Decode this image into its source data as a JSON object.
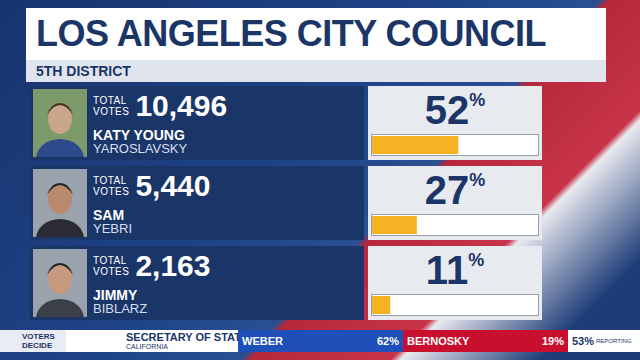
{
  "chart_data": {
    "type": "bar",
    "orientation": "horizontal",
    "title": "LOS ANGELES CITY COUNCIL",
    "subtitle": "5TH DISTRICT",
    "categories": [
      "KATY YOUNG YAROSLAVSKY",
      "SAM YEBRI",
      "JIMMY BIBLARZ"
    ],
    "values": [
      52,
      27,
      11
    ],
    "value_labels": [
      "52%",
      "27%",
      "11%"
    ],
    "data_labels": true,
    "votes_caption": "TOTAL VOTES",
    "votes": [
      10496,
      5440,
      2163
    ],
    "votes_labels": [
      "10,496",
      "5,440",
      "2,163"
    ],
    "color": "#f5b324",
    "xlim": [
      0,
      100
    ],
    "tick_labels": false,
    "grid": false
  },
  "ticker": {
    "logo": "VOTERS DECIDE",
    "race": "SECRETARY OF STATE",
    "state": "CALIFORNIA",
    "candidates": [
      {
        "name": "WEBER",
        "value": 62,
        "label": "62%",
        "color": "#1f4fb8"
      },
      {
        "name": "BERNOSKY",
        "value": 19,
        "label": "19%",
        "color": "#c8102e"
      }
    ],
    "reporting": 53,
    "reporting_label": "53%",
    "reporting_caption": "REPORTING"
  }
}
